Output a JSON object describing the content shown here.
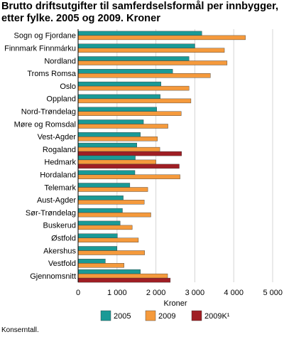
{
  "title": "Brutto driftsutgifter til samferdselsformål per innbygger, etter fylke. 2005 og 2009. Kroner",
  "source": "Konserntall.",
  "chart_data": {
    "type": "bar",
    "orientation": "horizontal",
    "title": "Brutto driftsutgifter til samferdselsformål per innbygger, etter fylke. 2005 og 2009. Kroner",
    "xlabel": "Kroner",
    "xlim": [
      0,
      5000
    ],
    "ticks": [
      0,
      1000,
      2000,
      3000,
      4000,
      5000
    ],
    "tick_labels": [
      "0",
      "1 000",
      "2 000",
      "3 000",
      "4 000",
      "5 000"
    ],
    "grid": "vertical",
    "legend_position": "bottom",
    "categories": [
      "Sogn og Fjordane",
      "Finnmark Finnmárku",
      "Nordland",
      "Troms Romsa",
      "Oslo",
      "Oppland",
      "Nord-Trøndelag",
      "Møre og Romsdal",
      "Vest-Agder",
      "Rogaland",
      "Hedmark",
      "Hordaland",
      "Telemark",
      "Aust-Agder",
      "Sør-Trøndelag",
      "Buskerud",
      "Østfold",
      "Akershus",
      "Vestfold",
      "Gjennomsnitt"
    ],
    "series": [
      {
        "name": "2005",
        "color": "#1a9a96",
        "values": [
          3180,
          3000,
          2850,
          2430,
          2130,
          2110,
          2020,
          1680,
          1600,
          1510,
          1470,
          1460,
          1330,
          1160,
          1140,
          1080,
          1010,
          1000,
          700,
          1600
        ]
      },
      {
        "name": "2009",
        "color": "#f59a3c",
        "values": [
          4300,
          3760,
          3830,
          3400,
          2850,
          2900,
          2650,
          2310,
          2040,
          2100,
          2000,
          2620,
          1790,
          1700,
          1870,
          1390,
          1550,
          1710,
          1180,
          2300
        ]
      },
      {
        "name": "2009K¹",
        "color": "#a01e24",
        "values": [
          null,
          null,
          null,
          null,
          null,
          null,
          null,
          null,
          null,
          2660,
          2600,
          null,
          null,
          null,
          null,
          null,
          null,
          null,
          null,
          2370
        ]
      }
    ]
  }
}
